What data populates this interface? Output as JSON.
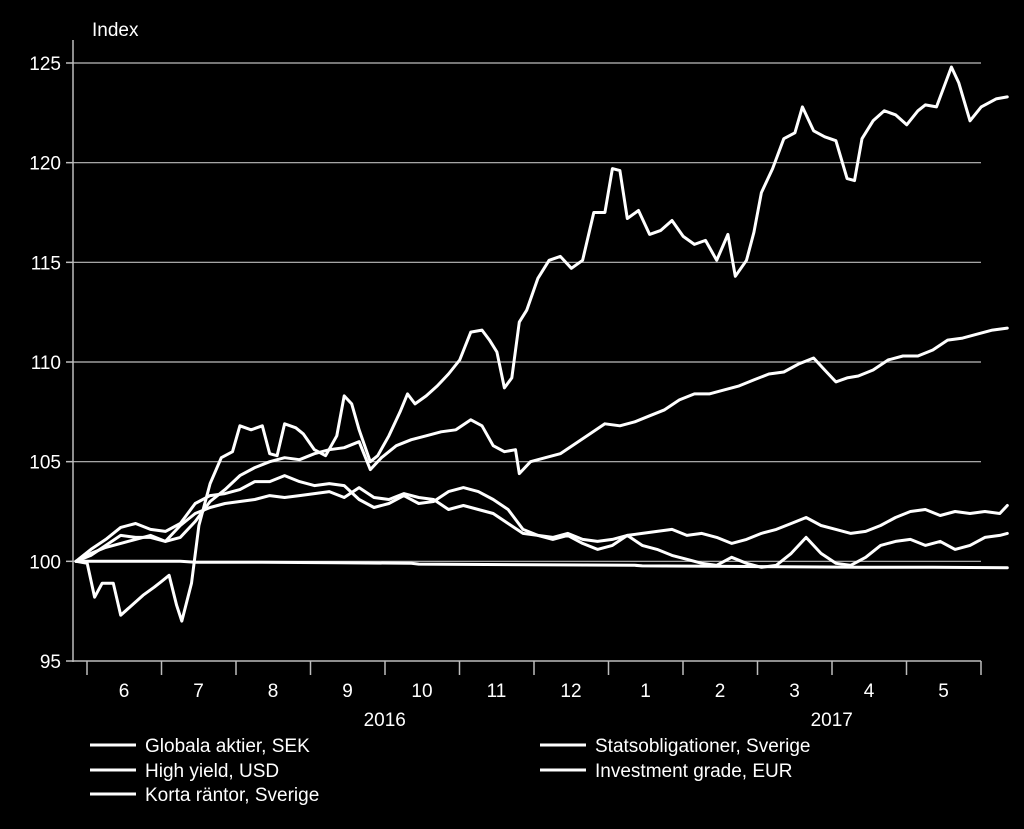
{
  "chart_data": {
    "type": "line",
    "ylabel": "Index",
    "ylim": [
      95,
      125
    ],
    "y_ticks": [
      95,
      100,
      105,
      110,
      115,
      120,
      125
    ],
    "grid": true,
    "legend_position": "bottom",
    "x_month_labels": [
      "6",
      "7",
      "8",
      "9",
      "10",
      "11",
      "12",
      "1",
      "2",
      "3",
      "4",
      "5"
    ],
    "x_year_labels": [
      {
        "label": "2016",
        "month_index": 3.5
      },
      {
        "label": "2017",
        "month_index": 9.5
      }
    ],
    "x_range_months": [
      0,
      11.6
    ],
    "colors": {
      "background": "#000000",
      "line": "#ffffff",
      "grid": "#bdbdbd"
    },
    "series": [
      {
        "name": "Globala aktier, SEK",
        "points": [
          [
            0,
            100
          ],
          [
            0.15,
            99.9
          ],
          [
            0.25,
            98.2
          ],
          [
            0.35,
            98.9
          ],
          [
            0.5,
            98.9
          ],
          [
            0.6,
            97.3
          ],
          [
            0.75,
            97.8
          ],
          [
            0.9,
            98.3
          ],
          [
            1.05,
            98.7
          ],
          [
            1.15,
            99
          ],
          [
            1.25,
            99.3
          ],
          [
            1.35,
            97.8
          ],
          [
            1.42,
            97
          ],
          [
            1.55,
            98.9
          ],
          [
            1.65,
            101.8
          ],
          [
            1.8,
            103.9
          ],
          [
            1.95,
            105.2
          ],
          [
            2.1,
            105.5
          ],
          [
            2.2,
            106.8
          ],
          [
            2.35,
            106.6
          ],
          [
            2.5,
            106.8
          ],
          [
            2.6,
            105.4
          ],
          [
            2.7,
            105.3
          ],
          [
            2.8,
            106.9
          ],
          [
            2.95,
            106.7
          ],
          [
            3.05,
            106.4
          ],
          [
            3.2,
            105.6
          ],
          [
            3.35,
            105.3
          ],
          [
            3.5,
            106.3
          ],
          [
            3.6,
            108.3
          ],
          [
            3.7,
            107.9
          ],
          [
            3.8,
            106.6
          ],
          [
            3.95,
            105
          ],
          [
            4.05,
            105.3
          ],
          [
            4.2,
            106.3
          ],
          [
            4.35,
            107.5
          ],
          [
            4.45,
            108.4
          ],
          [
            4.55,
            107.9
          ],
          [
            4.7,
            108.3
          ],
          [
            4.85,
            108.8
          ],
          [
            5,
            109.4
          ],
          [
            5.15,
            110.1
          ],
          [
            5.3,
            111.5
          ],
          [
            5.45,
            111.6
          ],
          [
            5.55,
            111.1
          ],
          [
            5.65,
            110.5
          ],
          [
            5.75,
            108.7
          ],
          [
            5.85,
            109.2
          ],
          [
            5.95,
            112
          ],
          [
            6.05,
            112.6
          ],
          [
            6.2,
            114.2
          ],
          [
            6.35,
            115.1
          ],
          [
            6.5,
            115.3
          ],
          [
            6.65,
            114.7
          ],
          [
            6.8,
            115.1
          ],
          [
            6.95,
            117.5
          ],
          [
            7.1,
            117.5
          ],
          [
            7.2,
            119.7
          ],
          [
            7.3,
            119.6
          ],
          [
            7.4,
            117.2
          ],
          [
            7.55,
            117.6
          ],
          [
            7.7,
            116.4
          ],
          [
            7.85,
            116.6
          ],
          [
            8,
            117.1
          ],
          [
            8.15,
            116.3
          ],
          [
            8.3,
            115.9
          ],
          [
            8.45,
            116.1
          ],
          [
            8.6,
            115.1
          ],
          [
            8.75,
            116.4
          ],
          [
            8.85,
            114.3
          ],
          [
            9,
            115.1
          ],
          [
            9.1,
            116.5
          ],
          [
            9.2,
            118.5
          ],
          [
            9.35,
            119.7
          ],
          [
            9.5,
            121.2
          ],
          [
            9.65,
            121.5
          ],
          [
            9.75,
            122.8
          ],
          [
            9.9,
            121.6
          ],
          [
            10.05,
            121.3
          ],
          [
            10.2,
            121.1
          ],
          [
            10.35,
            119.2
          ],
          [
            10.45,
            119.1
          ],
          [
            10.55,
            121.2
          ],
          [
            10.7,
            122.1
          ],
          [
            10.85,
            122.6
          ],
          [
            11,
            122.4
          ],
          [
            11.15,
            121.9
          ],
          [
            11.3,
            122.6
          ],
          [
            11.4,
            122.9
          ],
          [
            11.55,
            122.8
          ],
          [
            11.75,
            124.8
          ],
          [
            11.85,
            124
          ],
          [
            12,
            122.1
          ],
          [
            12.15,
            122.8
          ],
          [
            12.35,
            123.2
          ],
          [
            12.5,
            123.3
          ]
        ]
      },
      {
        "name": "High yield, USD",
        "points": [
          [
            0,
            100
          ],
          [
            0.2,
            100.3
          ],
          [
            0.4,
            100.8
          ],
          [
            0.6,
            101.3
          ],
          [
            0.8,
            101.2
          ],
          [
            1,
            101.2
          ],
          [
            1.2,
            101
          ],
          [
            1.4,
            101.2
          ],
          [
            1.6,
            102
          ],
          [
            1.8,
            103
          ],
          [
            2,
            103.6
          ],
          [
            2.2,
            104.3
          ],
          [
            2.4,
            104.7
          ],
          [
            2.6,
            105
          ],
          [
            2.8,
            105.2
          ],
          [
            3,
            105.1
          ],
          [
            3.2,
            105.4
          ],
          [
            3.4,
            105.6
          ],
          [
            3.6,
            105.7
          ],
          [
            3.8,
            106
          ],
          [
            3.95,
            104.6
          ],
          [
            4.1,
            105.2
          ],
          [
            4.3,
            105.8
          ],
          [
            4.5,
            106.1
          ],
          [
            4.7,
            106.3
          ],
          [
            4.9,
            106.5
          ],
          [
            5.1,
            106.6
          ],
          [
            5.3,
            107.1
          ],
          [
            5.45,
            106.8
          ],
          [
            5.6,
            105.8
          ],
          [
            5.75,
            105.5
          ],
          [
            5.9,
            105.6
          ],
          [
            5.95,
            104.4
          ],
          [
            6.1,
            105
          ],
          [
            6.3,
            105.2
          ],
          [
            6.5,
            105.4
          ],
          [
            6.7,
            105.9
          ],
          [
            6.9,
            106.4
          ],
          [
            7.1,
            106.9
          ],
          [
            7.3,
            106.8
          ],
          [
            7.5,
            107
          ],
          [
            7.7,
            107.3
          ],
          [
            7.9,
            107.6
          ],
          [
            8.1,
            108.1
          ],
          [
            8.3,
            108.4
          ],
          [
            8.5,
            108.4
          ],
          [
            8.7,
            108.6
          ],
          [
            8.9,
            108.8
          ],
          [
            9.1,
            109.1
          ],
          [
            9.3,
            109.4
          ],
          [
            9.5,
            109.5
          ],
          [
            9.7,
            109.9
          ],
          [
            9.9,
            110.2
          ],
          [
            10.05,
            109.6
          ],
          [
            10.2,
            109
          ],
          [
            10.35,
            109.2
          ],
          [
            10.5,
            109.3
          ],
          [
            10.7,
            109.6
          ],
          [
            10.9,
            110.1
          ],
          [
            11.1,
            110.3
          ],
          [
            11.3,
            110.3
          ],
          [
            11.5,
            110.6
          ],
          [
            11.7,
            111.1
          ],
          [
            11.9,
            111.2
          ],
          [
            12.1,
            111.4
          ],
          [
            12.3,
            111.6
          ],
          [
            12.5,
            111.7
          ]
        ]
      },
      {
        "name": "Korta räntor, Sverige",
        "points": [
          [
            0,
            100
          ],
          [
            1,
            100
          ],
          [
            1.4,
            100
          ],
          [
            1.6,
            99.95
          ],
          [
            2.5,
            99.95
          ],
          [
            3.5,
            99.93
          ],
          [
            4.5,
            99.9
          ],
          [
            4.6,
            99.86
          ],
          [
            5.5,
            99.84
          ],
          [
            6.5,
            99.82
          ],
          [
            7.5,
            99.8
          ],
          [
            7.6,
            99.77
          ],
          [
            8.5,
            99.75
          ],
          [
            9.5,
            99.73
          ],
          [
            10.5,
            99.7
          ],
          [
            11.5,
            99.7
          ],
          [
            12.5,
            99.68
          ]
        ]
      },
      {
        "name": "Statsobligationer, Sverige",
        "points": [
          [
            0,
            100
          ],
          [
            0.2,
            100.4
          ],
          [
            0.4,
            100.7
          ],
          [
            0.6,
            100.9
          ],
          [
            0.8,
            101.1
          ],
          [
            1,
            101.3
          ],
          [
            1.2,
            101
          ],
          [
            1.4,
            101.8
          ],
          [
            1.6,
            102.4
          ],
          [
            1.8,
            102.7
          ],
          [
            2,
            102.9
          ],
          [
            2.2,
            103
          ],
          [
            2.4,
            103.1
          ],
          [
            2.6,
            103.3
          ],
          [
            2.8,
            103.2
          ],
          [
            3,
            103.3
          ],
          [
            3.2,
            103.4
          ],
          [
            3.4,
            103.5
          ],
          [
            3.6,
            103.2
          ],
          [
            3.8,
            103.7
          ],
          [
            4,
            103.2
          ],
          [
            4.2,
            103.1
          ],
          [
            4.4,
            103.4
          ],
          [
            4.6,
            103.2
          ],
          [
            4.8,
            103.1
          ],
          [
            5,
            102.6
          ],
          [
            5.2,
            102.8
          ],
          [
            5.4,
            102.6
          ],
          [
            5.6,
            102.4
          ],
          [
            5.8,
            101.9
          ],
          [
            6,
            101.4
          ],
          [
            6.2,
            101.3
          ],
          [
            6.4,
            101.2
          ],
          [
            6.6,
            101.4
          ],
          [
            6.8,
            101.1
          ],
          [
            7,
            101
          ],
          [
            7.2,
            101.1
          ],
          [
            7.4,
            101.3
          ],
          [
            7.6,
            101.4
          ],
          [
            7.8,
            101.5
          ],
          [
            8,
            101.6
          ],
          [
            8.2,
            101.3
          ],
          [
            8.4,
            101.4
          ],
          [
            8.6,
            101.2
          ],
          [
            8.8,
            100.9
          ],
          [
            9,
            101.1
          ],
          [
            9.2,
            101.4
          ],
          [
            9.4,
            101.6
          ],
          [
            9.6,
            101.9
          ],
          [
            9.8,
            102.2
          ],
          [
            10,
            101.8
          ],
          [
            10.2,
            101.6
          ],
          [
            10.4,
            101.4
          ],
          [
            10.6,
            101.5
          ],
          [
            10.8,
            101.8
          ],
          [
            11,
            102.2
          ],
          [
            11.2,
            102.5
          ],
          [
            11.4,
            102.6
          ],
          [
            11.6,
            102.3
          ],
          [
            11.8,
            102.5
          ],
          [
            12,
            102.4
          ],
          [
            12.2,
            102.5
          ],
          [
            12.4,
            102.4
          ],
          [
            12.5,
            102.8
          ]
        ]
      },
      {
        "name": "Investment grade, EUR",
        "points": [
          [
            0,
            100
          ],
          [
            0.2,
            100.6
          ],
          [
            0.4,
            101.1
          ],
          [
            0.6,
            101.7
          ],
          [
            0.8,
            101.9
          ],
          [
            1,
            101.6
          ],
          [
            1.2,
            101.5
          ],
          [
            1.4,
            101.9
          ],
          [
            1.6,
            102.9
          ],
          [
            1.8,
            103.3
          ],
          [
            2,
            103.4
          ],
          [
            2.2,
            103.6
          ],
          [
            2.4,
            104
          ],
          [
            2.6,
            104
          ],
          [
            2.8,
            104.3
          ],
          [
            3,
            104
          ],
          [
            3.2,
            103.8
          ],
          [
            3.4,
            103.9
          ],
          [
            3.6,
            103.8
          ],
          [
            3.8,
            103.1
          ],
          [
            4,
            102.7
          ],
          [
            4.2,
            102.9
          ],
          [
            4.4,
            103.3
          ],
          [
            4.6,
            102.9
          ],
          [
            4.8,
            103
          ],
          [
            5,
            103.5
          ],
          [
            5.2,
            103.7
          ],
          [
            5.4,
            103.5
          ],
          [
            5.6,
            103.1
          ],
          [
            5.8,
            102.6
          ],
          [
            6,
            101.6
          ],
          [
            6.2,
            101.3
          ],
          [
            6.4,
            101.1
          ],
          [
            6.6,
            101.3
          ],
          [
            6.8,
            100.9
          ],
          [
            7,
            100.6
          ],
          [
            7.2,
            100.8
          ],
          [
            7.4,
            101.3
          ],
          [
            7.6,
            100.8
          ],
          [
            7.8,
            100.6
          ],
          [
            8,
            100.3
          ],
          [
            8.2,
            100.1
          ],
          [
            8.4,
            99.9
          ],
          [
            8.6,
            99.8
          ],
          [
            8.8,
            100.2
          ],
          [
            9,
            99.9
          ],
          [
            9.2,
            99.7
          ],
          [
            9.4,
            99.8
          ],
          [
            9.6,
            100.4
          ],
          [
            9.8,
            101.2
          ],
          [
            10,
            100.4
          ],
          [
            10.2,
            99.9
          ],
          [
            10.4,
            99.8
          ],
          [
            10.6,
            100.2
          ],
          [
            10.8,
            100.8
          ],
          [
            11,
            101
          ],
          [
            11.2,
            101.1
          ],
          [
            11.4,
            100.8
          ],
          [
            11.6,
            101
          ],
          [
            11.8,
            100.6
          ],
          [
            12,
            100.8
          ],
          [
            12.2,
            101.2
          ],
          [
            12.4,
            101.3
          ],
          [
            12.5,
            101.4
          ]
        ]
      }
    ]
  }
}
